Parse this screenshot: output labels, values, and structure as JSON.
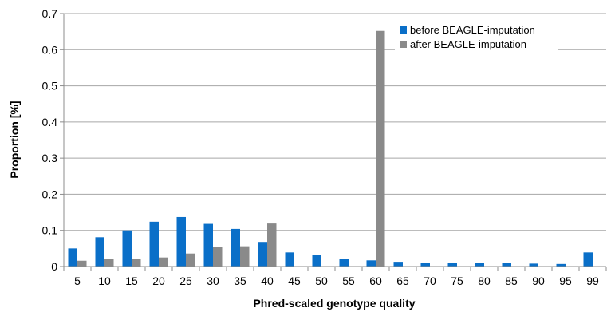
{
  "chart_data": {
    "type": "bar",
    "xlabel": "Phred-scaled genotype quality",
    "ylabel": "Proportion [%]",
    "ylim": [
      0,
      0.7
    ],
    "yticks": [
      "0",
      "0.1",
      "0.2",
      "0.3",
      "0.4",
      "0.5",
      "0.6",
      "0.7"
    ],
    "categories": [
      "5",
      "10",
      "15",
      "20",
      "25",
      "30",
      "35",
      "40",
      "45",
      "50",
      "55",
      "60",
      "65",
      "70",
      "75",
      "80",
      "85",
      "90",
      "95",
      "99"
    ],
    "grid": "horizontal",
    "legend_position": "top-right",
    "series": [
      {
        "name": "before BEAGLE-imputation",
        "color": "#0A6FC8",
        "values": [
          0.05,
          0.081,
          0.1,
          0.124,
          0.137,
          0.118,
          0.104,
          0.068,
          0.039,
          0.031,
          0.022,
          0.017,
          0.013,
          0.01,
          0.009,
          0.009,
          0.009,
          0.008,
          0.007,
          0.039
        ]
      },
      {
        "name": "after BEAGLE-imputation",
        "color": "#8A8A8A",
        "values": [
          0.016,
          0.021,
          0.021,
          0.025,
          0.036,
          0.053,
          0.056,
          0.119,
          0,
          0,
          0,
          0.652,
          0,
          0,
          0,
          0,
          0,
          0,
          0,
          0
        ]
      }
    ]
  }
}
